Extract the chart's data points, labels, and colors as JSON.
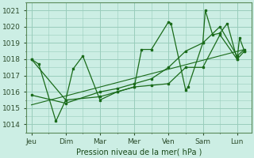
{
  "xlabel": "Pression niveau de la mer( hPa )",
  "bg_color": "#cceee4",
  "grid_color": "#99ccbb",
  "line_color": "#1a6b1a",
  "ylim": [
    1013.5,
    1021.5
  ],
  "yticks": [
    1014,
    1015,
    1016,
    1017,
    1018,
    1019,
    1020,
    1021
  ],
  "day_labels": [
    "Jeu",
    "Dim",
    "Mar",
    "Mer",
    "Ven",
    "Sam",
    "Lun"
  ],
  "day_positions": [
    0,
    14,
    28,
    42,
    56,
    70,
    84
  ],
  "xlim": [
    -2,
    90
  ],
  "series1_x": [
    0,
    3,
    10,
    14,
    17,
    21,
    28,
    35,
    42,
    45,
    49,
    56,
    57,
    63,
    64,
    70,
    71,
    74,
    77,
    80,
    84,
    85,
    87
  ],
  "series1_y": [
    1018.0,
    1017.7,
    1014.2,
    1015.5,
    1017.4,
    1018.2,
    1015.5,
    1016.0,
    1016.3,
    1018.6,
    1018.6,
    1020.3,
    1020.2,
    1016.1,
    1016.3,
    1019.0,
    1021.0,
    1019.5,
    1019.6,
    1020.2,
    1018.0,
    1019.3,
    1018.5
  ],
  "series2_x": [
    0,
    14,
    28,
    35,
    42,
    49,
    56,
    63,
    70,
    77,
    84,
    87
  ],
  "series2_y": [
    1018.0,
    1015.5,
    1015.7,
    1016.0,
    1016.3,
    1016.4,
    1016.5,
    1017.5,
    1017.5,
    1019.5,
    1018.0,
    1018.5
  ],
  "series3_x": [
    0,
    14,
    28,
    35,
    42,
    49,
    56,
    63,
    70,
    77,
    84,
    87
  ],
  "series3_y": [
    1015.8,
    1015.3,
    1016.0,
    1016.2,
    1016.5,
    1016.8,
    1017.5,
    1018.5,
    1019.0,
    1020.0,
    1018.2,
    1018.6
  ],
  "trend_x": [
    0,
    87
  ],
  "trend_y": [
    1015.2,
    1018.6
  ]
}
